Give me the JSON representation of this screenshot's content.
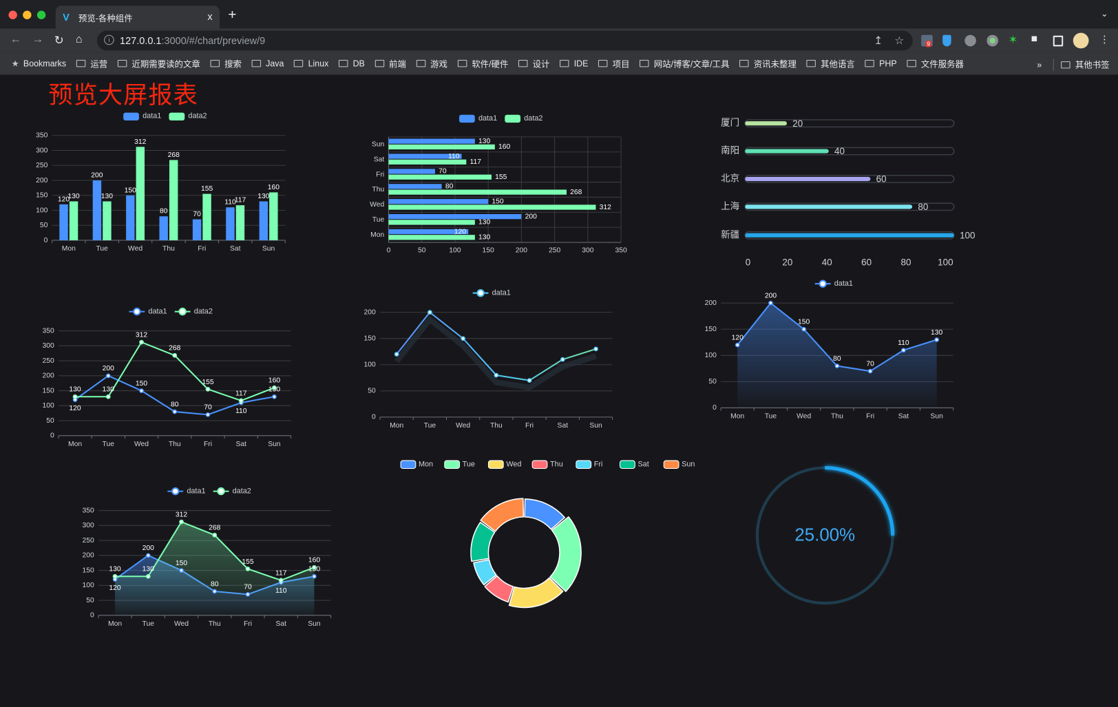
{
  "browser": {
    "tab_title": "预览-各种组件",
    "tab_close": "x",
    "new_tab": "+",
    "url_host": "127.0.0.1",
    "url_rest": ":3000/#/chart/preview/9",
    "extension_badge": "9",
    "bookmarks_label": "Bookmarks",
    "bookmarks": [
      "运营",
      "近期需要读的文章",
      "搜索",
      "Java",
      "Linux",
      "DB",
      "前端",
      "游戏",
      "软件/硬件",
      "设计",
      "IDE",
      "项目",
      "网站/博客/文章/工具",
      "资讯未整理",
      "其他语言",
      "PHP",
      "文件服务器"
    ],
    "overflow": "»",
    "other_bookmarks": "其他书签"
  },
  "page": {
    "title": "预览大屏报表"
  },
  "chart_data": [
    {
      "type": "bar",
      "orientation": "vertical",
      "legend": "top",
      "categories": [
        "Mon",
        "Tue",
        "Wed",
        "Thu",
        "Fri",
        "Sat",
        "Sun"
      ],
      "series": [
        {
          "name": "data1",
          "values": [
            120,
            200,
            150,
            80,
            70,
            110,
            130
          ],
          "color": "#4992ff"
        },
        {
          "name": "data2",
          "values": [
            130,
            130,
            312,
            268,
            155,
            117,
            160
          ],
          "color": "#7cffb2"
        }
      ],
      "ylim": [
        0,
        350
      ],
      "yticks": [
        0,
        50,
        100,
        150,
        200,
        250,
        300,
        350
      ],
      "grid": true
    },
    {
      "type": "bar",
      "orientation": "horizontal",
      "legend": "top",
      "categories": [
        "Mon",
        "Tue",
        "Wed",
        "Thu",
        "Fri",
        "Sat",
        "Sun"
      ],
      "series": [
        {
          "name": "data1",
          "values": [
            120,
            200,
            150,
            80,
            70,
            110,
            130
          ],
          "color": "#4992ff"
        },
        {
          "name": "data2",
          "values": [
            130,
            130,
            312,
            268,
            155,
            117,
            160
          ],
          "color": "#7cffb2"
        }
      ],
      "xlim": [
        0,
        350
      ],
      "xticks": [
        0,
        50,
        100,
        150,
        200,
        250,
        300,
        350
      ],
      "grid": true
    },
    {
      "type": "bar",
      "orientation": "horizontal",
      "style": "progress",
      "categories": [
        "厦门",
        "南阳",
        "北京",
        "上海",
        "新疆"
      ],
      "values": [
        20,
        40,
        60,
        80,
        100
      ],
      "colors": [
        "#b7e4a0",
        "#5fe0b3",
        "#a8a4f0",
        "#7be3ee",
        "#27a6e8"
      ],
      "xlim": [
        0,
        100
      ],
      "xticks": [
        0,
        20,
        40,
        60,
        80,
        100
      ]
    },
    {
      "type": "line",
      "legend": "top",
      "categories": [
        "Mon",
        "Tue",
        "Wed",
        "Thu",
        "Fri",
        "Sat",
        "Sun"
      ],
      "series": [
        {
          "name": "data1",
          "values": [
            120,
            200,
            150,
            80,
            70,
            110,
            130
          ],
          "color": "#4992ff"
        },
        {
          "name": "data2",
          "values": [
            130,
            130,
            312,
            268,
            155,
            117,
            160
          ],
          "color": "#7cffb2"
        }
      ],
      "ylim": [
        0,
        350
      ],
      "yticks": [
        0,
        50,
        100,
        150,
        200,
        250,
        300,
        350
      ],
      "grid": true
    },
    {
      "type": "line",
      "legend": "top",
      "categories": [
        "Mon",
        "Tue",
        "Wed",
        "Thu",
        "Fri",
        "Sat",
        "Sun"
      ],
      "series": [
        {
          "name": "data1",
          "values": [
            120,
            200,
            150,
            80,
            70,
            110,
            130
          ],
          "color": "#4fc3f7"
        }
      ],
      "ylim": [
        0,
        200
      ],
      "yticks": [
        0,
        50,
        100,
        150,
        200
      ],
      "grid": true
    },
    {
      "type": "area",
      "legend": "top",
      "categories": [
        "Mon",
        "Tue",
        "Wed",
        "Thu",
        "Fri",
        "Sat",
        "Sun"
      ],
      "series": [
        {
          "name": "data1",
          "values": [
            120,
            200,
            150,
            80,
            70,
            110,
            130
          ],
          "color": "#4992ff"
        }
      ],
      "ylim": [
        0,
        200
      ],
      "yticks": [
        0,
        50,
        100,
        150,
        200
      ],
      "grid": true
    },
    {
      "type": "area",
      "legend": "top",
      "categories": [
        "Mon",
        "Tue",
        "Wed",
        "Thu",
        "Fri",
        "Sat",
        "Sun"
      ],
      "series": [
        {
          "name": "data1",
          "values": [
            120,
            200,
            150,
            80,
            70,
            110,
            130
          ],
          "color": "#4992ff"
        },
        {
          "name": "data2",
          "values": [
            130,
            130,
            312,
            268,
            155,
            117,
            160
          ],
          "color": "#7cffb2"
        }
      ],
      "ylim": [
        0,
        350
      ],
      "yticks": [
        0,
        50,
        100,
        150,
        200,
        250,
        300,
        350
      ],
      "grid": true
    },
    {
      "type": "pie",
      "style": "donut",
      "legend": "top",
      "categories": [
        "Mon",
        "Tue",
        "Wed",
        "Thu",
        "Fri",
        "Sat",
        "Sun"
      ],
      "values": [
        120,
        200,
        150,
        80,
        70,
        110,
        130
      ],
      "colors": [
        "#4992ff",
        "#7cffb2",
        "#fddd60",
        "#ff6e76",
        "#58d9f9",
        "#05c091",
        "#ff8a45"
      ]
    },
    {
      "type": "gauge",
      "value": 25,
      "label": "25.00%",
      "color": "#1ca4f0",
      "track_color": "#1f3d4e"
    }
  ]
}
